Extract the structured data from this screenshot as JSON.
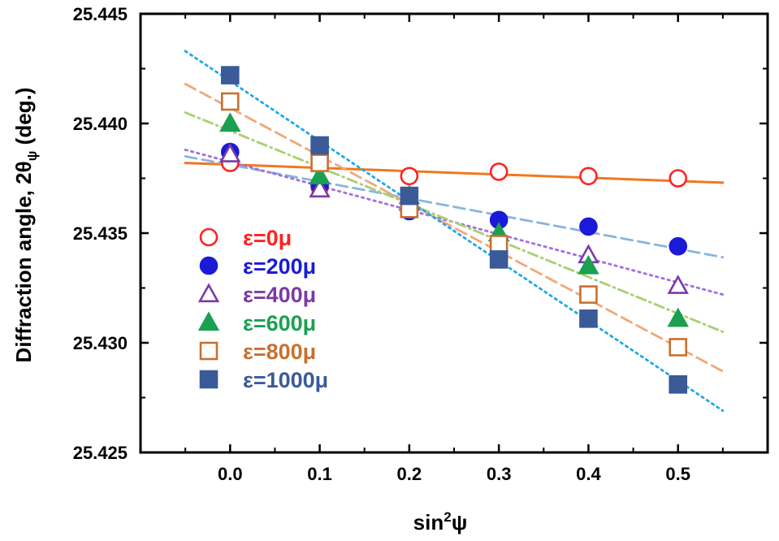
{
  "chart_data": {
    "type": "scatter",
    "xlabel_main": "sin",
    "xlabel_sup": "2",
    "xlabel_end": "ψ",
    "ylabel_main": "Diffraction angle, 2θ",
    "ylabel_sub": "ψ",
    "ylabel_end": " (deg.)",
    "xlim": [
      -0.1,
      0.6
    ],
    "ylim": [
      25.425,
      25.445
    ],
    "xticks": [
      "0.0",
      "0.1",
      "0.2",
      "0.3",
      "0.4",
      "0.5"
    ],
    "yticks": [
      "25.425",
      "25.430",
      "25.435",
      "25.440",
      "25.445"
    ],
    "legend_position": "left",
    "x": [
      0.0,
      0.1,
      0.2,
      0.3,
      0.4,
      0.5
    ],
    "series": [
      {
        "name": "ε=0μ",
        "marker": "circle-open",
        "marker_color": "#ff2222",
        "line_color": "#f07820",
        "line_style": "solid",
        "values": [
          25.4382,
          25.4371,
          25.4376,
          25.4378,
          25.4376,
          25.4375
        ],
        "fit": [
          [
            -0.05,
            25.4382
          ],
          [
            0.55,
            25.4373
          ]
        ]
      },
      {
        "name": "ε=200μ",
        "marker": "circle-filled",
        "marker_color": "#1a1ad8",
        "line_color": "#8ab4e0",
        "line_style": "dashed",
        "values": [
          25.4387,
          25.4372,
          25.436,
          25.4356,
          25.4353,
          25.4344
        ],
        "fit": [
          [
            -0.05,
            25.4385
          ],
          [
            0.55,
            25.4339
          ]
        ]
      },
      {
        "name": "ε=400μ",
        "marker": "triangle-open",
        "marker_color": "#7a3aa8",
        "line_color": "#a070e0",
        "line_style": "dotted",
        "values": [
          25.4386,
          25.437,
          25.4364,
          25.435,
          25.434,
          25.4326
        ],
        "fit": [
          [
            -0.05,
            25.4388
          ],
          [
            0.55,
            25.4322
          ]
        ]
      },
      {
        "name": "ε=600μ",
        "marker": "triangle-filled",
        "marker_color": "#1aa050",
        "line_color": "#a8d070",
        "line_style": "dashdot",
        "values": [
          25.44,
          25.4376,
          25.4367,
          25.435,
          25.4335,
          25.4311
        ],
        "fit": [
          [
            -0.05,
            25.4405
          ],
          [
            0.55,
            25.4305
          ]
        ]
      },
      {
        "name": "ε=800μ",
        "marker": "square-open",
        "marker_color": "#c87030",
        "line_color": "#f0a878",
        "line_style": "dashed",
        "values": [
          25.441,
          25.4382,
          25.4361,
          25.4345,
          25.4322,
          25.4298
        ],
        "fit": [
          [
            -0.05,
            25.4418
          ],
          [
            0.55,
            25.4287
          ]
        ]
      },
      {
        "name": "ε=1000μ",
        "marker": "square-filled",
        "marker_color": "#3a5a98",
        "line_color": "#20a8e8",
        "line_style": "dotted",
        "values": [
          25.4422,
          25.439,
          25.4367,
          25.4338,
          25.4311,
          25.4281
        ],
        "fit": [
          [
            -0.05,
            25.4433
          ],
          [
            0.55,
            25.4269
          ]
        ]
      }
    ]
  }
}
